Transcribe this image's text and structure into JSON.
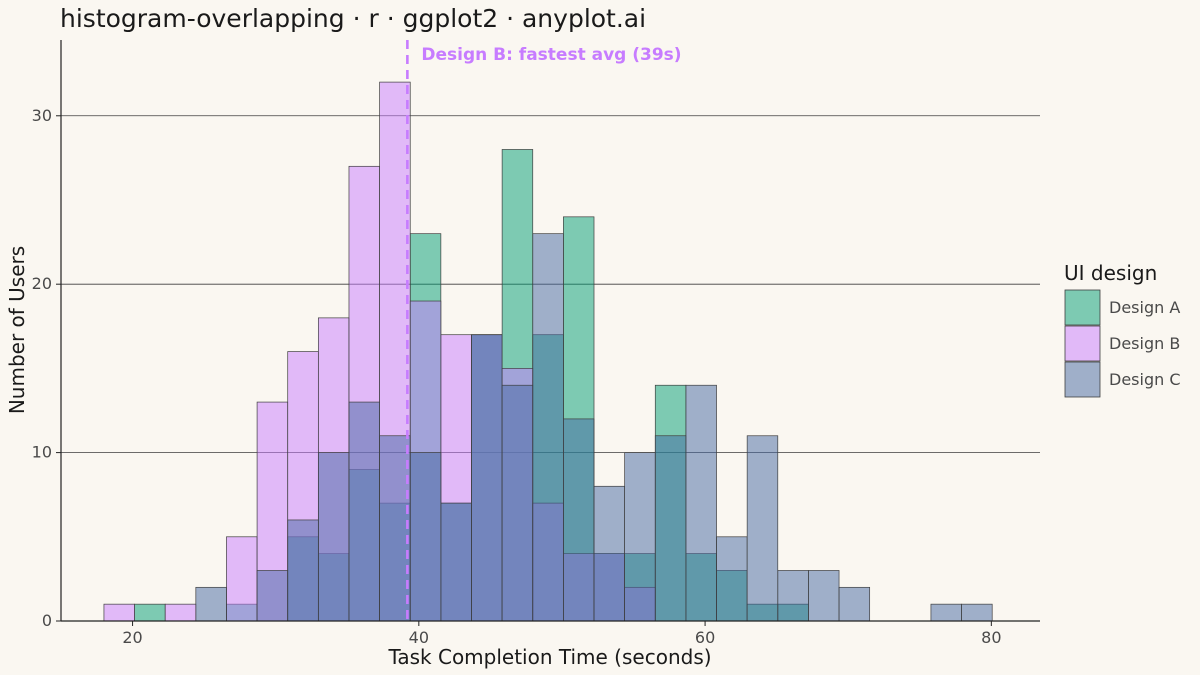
{
  "chart_data": {
    "type": "histogram",
    "title": "histogram-overlapping · r · ggplot2 · anyplot.ai",
    "xlabel": "Task Completion Time (seconds)",
    "ylabel": "Number of Users",
    "xlim": [
      15,
      83.4
    ],
    "ylim": [
      0,
      34.5
    ],
    "xticks": [
      20,
      40,
      60,
      80
    ],
    "yticks": [
      0,
      10,
      20,
      30
    ],
    "grid": "horizontal major",
    "legend_title": "UI design",
    "legend_position": "right",
    "bin_starts": [
      18,
      20.14,
      22.28,
      24.42,
      26.56,
      28.7,
      30.84,
      32.98,
      35.12,
      37.26,
      39.4,
      41.54,
      43.68,
      45.82,
      47.96,
      50.1,
      52.24,
      54.38,
      56.52,
      58.66,
      60.8,
      62.94,
      65.08,
      67.22,
      69.36,
      71.5,
      73.64,
      75.78,
      77.92
    ],
    "bin_width": 2.14,
    "series": [
      {
        "name": "Design A",
        "color": "#009E73",
        "values": [
          0,
          1,
          0,
          0,
          1,
          0,
          5,
          4,
          9,
          7,
          23,
          7,
          17,
          28,
          17,
          24,
          4,
          4,
          14,
          4,
          3,
          1,
          1,
          0,
          0,
          0,
          0,
          0,
          0
        ]
      },
      {
        "name": "Design B",
        "color": "#C77CFF",
        "values": [
          1,
          0,
          1,
          0,
          5,
          13,
          16,
          18,
          27,
          32,
          19,
          17,
          17,
          15,
          7,
          4,
          4,
          2,
          0,
          0,
          0,
          0,
          0,
          0,
          0,
          0,
          0,
          0,
          0
        ]
      },
      {
        "name": "Design C",
        "color": "#4467A1",
        "values": [
          0,
          0,
          0,
          2,
          0,
          3,
          6,
          10,
          13,
          11,
          10,
          7,
          17,
          14,
          23,
          12,
          8,
          10,
          11,
          14,
          5,
          11,
          3,
          3,
          2,
          0,
          0,
          1,
          1
        ]
      }
    ],
    "reference_line": {
      "x": 39.2,
      "label": "Design B: fastest avg (39s)",
      "color": "#C77CFF",
      "style": "dashed"
    }
  }
}
